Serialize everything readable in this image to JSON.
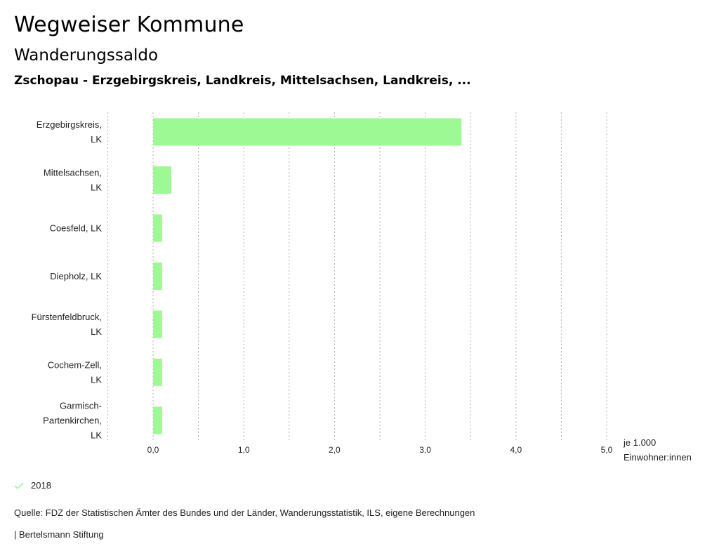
{
  "header": {
    "title": "Wegweiser Kommune",
    "subtitle": "Wanderungssaldo",
    "region": "Zschopau - Erzgebirgskreis, Landkreis, Mittelsachsen, Landkreis, ..."
  },
  "chart_data": {
    "type": "bar",
    "orientation": "horizontal",
    "title": "Wanderungssaldo",
    "categories": [
      [
        "Erzgebirgskreis,",
        "LK"
      ],
      [
        "Mittelsachsen,",
        "LK"
      ],
      [
        "Coesfeld, LK"
      ],
      [
        "Diepholz, LK"
      ],
      [
        "Fürstenfeldbruck,",
        "LK"
      ],
      [
        "Cochem-Zell,",
        "LK"
      ],
      [
        "Garmisch-",
        "Partenkirchen,",
        "LK"
      ]
    ],
    "series": [
      {
        "name": "2018",
        "values": [
          3.4,
          0.2,
          0.1,
          0.1,
          0.1,
          0.1,
          0.1
        ]
      }
    ],
    "xlabel": [
      "je 1.000",
      "Einwohner:innen"
    ],
    "xlim": [
      -0.5,
      5.0
    ],
    "xticks": [
      0,
      1,
      2,
      3,
      4,
      5
    ],
    "xtick_labels": [
      "0,0",
      "1,0",
      "2,0",
      "3,0",
      "4,0",
      "5,0"
    ],
    "gridlines": [
      -0.5,
      0,
      0.5,
      1,
      1.5,
      2,
      2.5,
      3,
      3.5,
      4,
      4.5,
      5
    ],
    "grid": true,
    "legend": "bottom-left",
    "colors": {
      "bar": "#9cf994",
      "grid": "#b0b0b0",
      "legend_check": "#9cf994"
    }
  },
  "legend": {
    "items": [
      {
        "label": "2018",
        "icon": "check-icon"
      }
    ]
  },
  "footer": {
    "source": "Quelle: FDZ der Statistischen Ämter des Bundes und der Länder, Wanderungsstatistik, ILS, eigene Berechnungen",
    "credit": "| Bertelsmann Stiftung"
  }
}
